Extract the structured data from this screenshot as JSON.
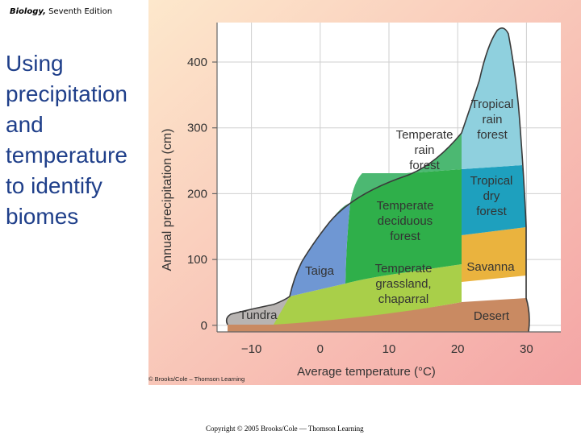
{
  "header": {
    "book_italic": "Biology,",
    "edition": " Seventh Edition"
  },
  "slide_title": {
    "lines": [
      "Using",
      "precipitation",
      "and",
      "temperature",
      "to identify",
      "biomes"
    ]
  },
  "figure": {
    "credit": "© Brooks/Cole – Thomson Learning",
    "colors": {
      "background_left": "#fde8cc",
      "background_right": "#f4a5a5"
    }
  },
  "chart_data": {
    "type": "area",
    "xlabel": "Average temperature (°C)",
    "ylabel": "Annual precipitation (cm)",
    "x_ticks": [
      -10,
      0,
      10,
      20,
      30
    ],
    "y_ticks": [
      0,
      100,
      200,
      300,
      400
    ],
    "xlim": [
      -15,
      35
    ],
    "ylim": [
      -10,
      460
    ],
    "grid": true,
    "biomes": [
      {
        "name": "Tundra",
        "label": "Tundra",
        "color": "#b8b4b2"
      },
      {
        "name": "Taiga",
        "label": "Taiga",
        "color": "#6f97d3"
      },
      {
        "name": "Temperate grassland, chaparral",
        "label": "Temperate grassland, chaparral",
        "color": "#a9cf49"
      },
      {
        "name": "Temperate deciduous forest",
        "label": "Temperate deciduous forest",
        "color": "#2faf4a"
      },
      {
        "name": "Temperate rain forest",
        "label": "Temperate rain forest",
        "color": "#4cb872"
      },
      {
        "name": "Desert",
        "label": "Desert",
        "color": "#c98a62"
      },
      {
        "name": "Savanna",
        "label": "Savanna",
        "color": "#eab33e"
      },
      {
        "name": "Tropical dry forest",
        "label": "Tropical dry forest",
        "color": "#1ea0be"
      },
      {
        "name": "Tropical rain forest",
        "label": "Tropical rain forest",
        "color": "#8fd0de"
      }
    ]
  },
  "footer": {
    "copyright": "Copyright © 2005 Brooks/Cole — Thomson Learning"
  }
}
